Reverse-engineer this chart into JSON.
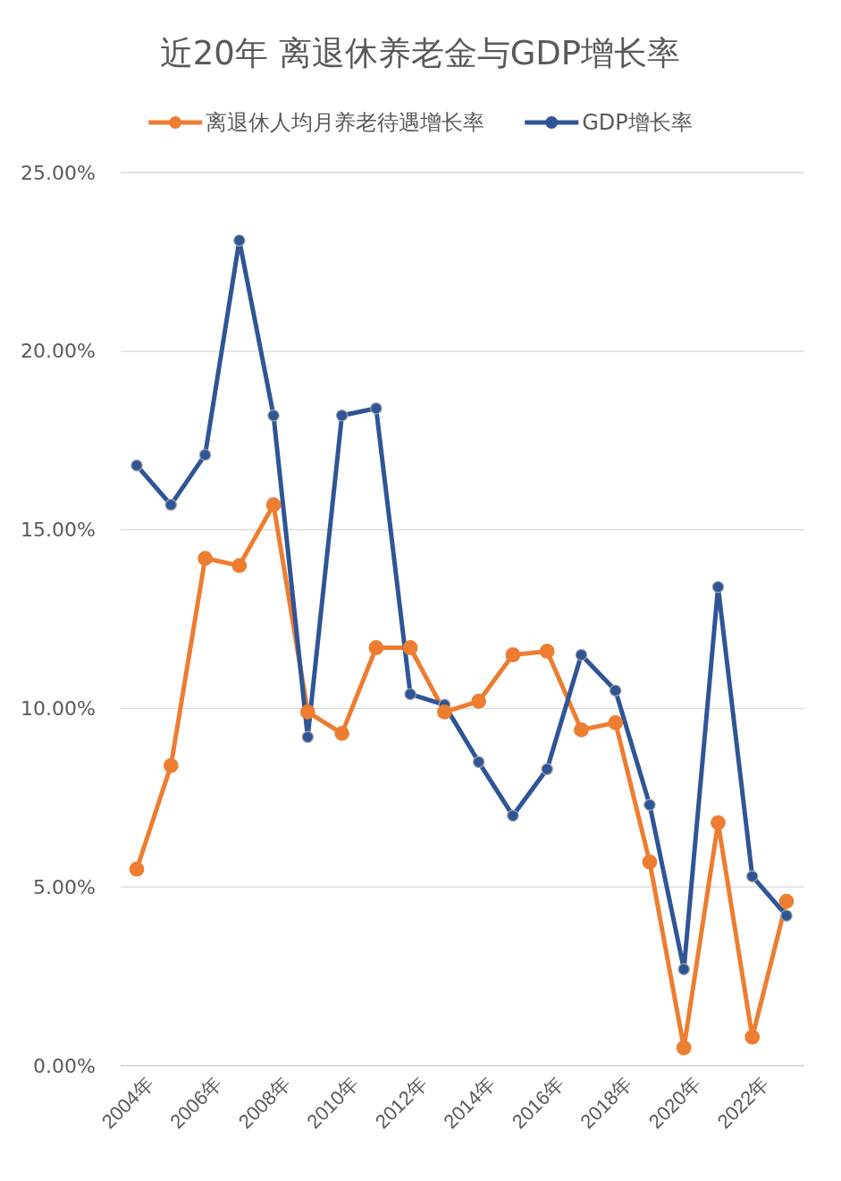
{
  "chart_data": {
    "type": "line",
    "title": "近20年 离退休养老金与GDP增长率",
    "categories": [
      "2004年",
      null,
      "2006年",
      null,
      "2008年",
      null,
      "2010年",
      null,
      "2012年",
      null,
      "2014年",
      null,
      "2016年",
      null,
      "2018年",
      null,
      "2020年",
      null,
      "2022年",
      null
    ],
    "series": [
      {
        "name": "离退休人均月养老待遇增长率",
        "color": "#ed7d31",
        "values": [
          5.5,
          8.4,
          14.2,
          14.0,
          15.7,
          9.9,
          9.3,
          11.7,
          11.7,
          9.9,
          10.2,
          11.5,
          11.6,
          9.4,
          9.6,
          5.7,
          0.5,
          6.8,
          0.8,
          4.6
        ]
      },
      {
        "name": "GDP增长率",
        "color": "#2f5597",
        "values": [
          16.8,
          15.7,
          17.1,
          23.1,
          18.2,
          9.2,
          18.2,
          18.4,
          10.4,
          10.1,
          8.5,
          7.0,
          8.3,
          11.5,
          10.5,
          7.3,
          2.7,
          13.4,
          5.3,
          4.2
        ]
      }
    ],
    "ylim": [
      0,
      25
    ],
    "yticks": [
      {
        "value": 0,
        "label": "0.00%"
      },
      {
        "value": 5,
        "label": "5.00%"
      },
      {
        "value": 10,
        "label": "10.00%"
      },
      {
        "value": 15,
        "label": "15.00%"
      },
      {
        "value": 20,
        "label": "20.00%"
      },
      {
        "value": 25,
        "label": "25.00%"
      }
    ],
    "grid": "y",
    "legend": "top",
    "marker": "circle",
    "line_style": "solid"
  }
}
